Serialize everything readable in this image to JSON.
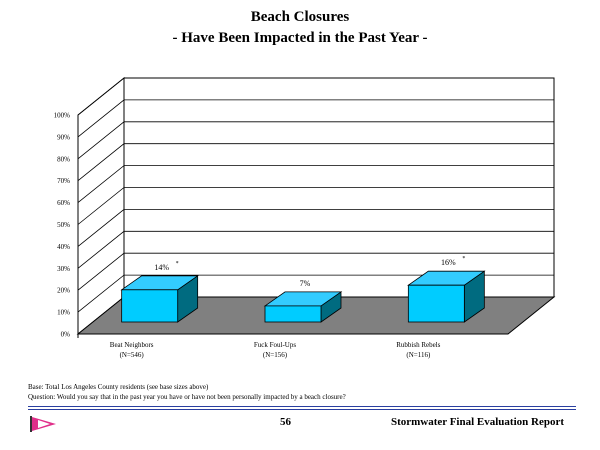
{
  "chart_data": {
    "type": "bar",
    "title": "Beach Closures",
    "subtitle": "- Have Been Impacted in the Past Year -",
    "categories": [
      {
        "line1": "Beat Neighbors",
        "line2": "(N=546)"
      },
      {
        "line1": "Fuck Foul-Ups",
        "line2": "(N=156)"
      },
      {
        "line1": "Rubbish Rebels",
        "line2": "(N=116)"
      }
    ],
    "values": [
      14,
      7,
      16
    ],
    "value_labels": [
      "14%",
      "7%",
      "16%"
    ],
    "markers": [
      "*",
      "",
      "*"
    ],
    "ylim": [
      0,
      100
    ],
    "yticks": [
      {
        "value": 0,
        "label": "0%"
      },
      {
        "value": 10,
        "label": "10%"
      },
      {
        "value": 20,
        "label": "20%"
      },
      {
        "value": 30,
        "label": "30%"
      },
      {
        "value": 40,
        "label": "40%"
      },
      {
        "value": 50,
        "label": "50%"
      },
      {
        "value": 60,
        "label": "60%"
      },
      {
        "value": 70,
        "label": "70%"
      },
      {
        "value": 80,
        "label": "80%"
      },
      {
        "value": 90,
        "label": "90%"
      },
      {
        "value": 100,
        "label": "100%"
      }
    ],
    "grid": true,
    "style": "3d",
    "colors": {
      "bar_front": "#00ccff",
      "bar_top": "#33ccff",
      "bar_side": "#006b80",
      "floor": "#808080"
    }
  },
  "notes": {
    "base": "Base: Total Los Angeles County residents (see base sizes above)",
    "question": "Question: Would you say that in the past year you have or have not been personally impacted by a beach closure?"
  },
  "footer": {
    "page_number": "56",
    "report_name": "Stormwater Final Evaluation Report",
    "rule_color": "#2a3fa0"
  }
}
